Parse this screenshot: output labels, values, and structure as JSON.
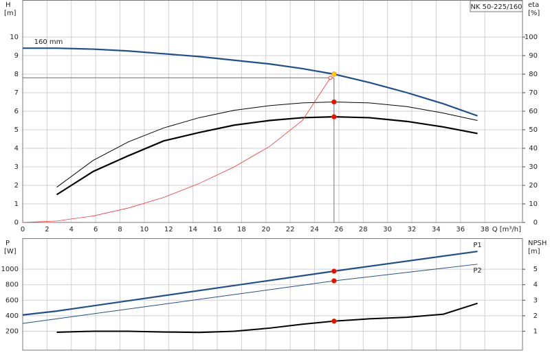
{
  "chart_data": [
    {
      "type": "line",
      "model": "NK 50-225/160",
      "ylabel": "H",
      "yunit": "[m]",
      "y2label": "eta",
      "y2unit": "[%]",
      "xlabel": "Q [m³/h]",
      "xlim": [
        0,
        41.1
      ],
      "xticks": [
        0,
        2,
        4,
        6,
        8,
        10,
        12,
        14,
        16,
        18,
        20,
        22,
        24,
        26,
        28,
        30,
        32,
        34,
        36,
        38
      ],
      "ylim": [
        0,
        12
      ],
      "yticks": [
        0,
        1,
        2,
        3,
        4,
        5,
        6,
        7,
        8,
        9,
        10
      ],
      "y2lim": [
        0,
        120
      ],
      "y2ticks": [
        0,
        10,
        20,
        30,
        40,
        50,
        60,
        70,
        80,
        90,
        100
      ],
      "grid": true,
      "show_xtick_labels": true,
      "duty_point": {
        "x": 25.6,
        "y": 7.8,
        "color": "#888888"
      },
      "series": [
        {
          "name": "160 mm",
          "color": "#1f4e8c",
          "width": 2.2,
          "axis": "y",
          "marker_color": "#ffcc00",
          "x": [
            0,
            2.8,
            5.8,
            8.7,
            11.6,
            14.5,
            17.4,
            20.3,
            23,
            25.6,
            28.5,
            31.6,
            34.6,
            37.4
          ],
          "values": [
            9.4,
            9.4,
            9.35,
            9.25,
            9.1,
            8.95,
            8.75,
            8.55,
            8.3,
            8.0,
            7.55,
            7.0,
            6.4,
            5.75
          ]
        },
        {
          "color": "#000000",
          "width": 1,
          "axis": "y2",
          "marker_color": "#ff0000",
          "x": [
            2.8,
            5.8,
            8.7,
            11.6,
            14.5,
            17.4,
            20.3,
            23,
            25.6,
            28.5,
            31.6,
            34.6,
            37.4
          ],
          "values": [
            19,
            33.5,
            43.5,
            51,
            56.5,
            60.5,
            63,
            64.5,
            65,
            64.5,
            62.5,
            59,
            55
          ]
        },
        {
          "color": "#000000",
          "width": 2.2,
          "axis": "y2",
          "marker_color": "#ff0000",
          "x": [
            2.8,
            5.8,
            8.7,
            11.6,
            14.5,
            17.4,
            20.3,
            23,
            25.6,
            28.5,
            31.6,
            34.6,
            37.4
          ],
          "values": [
            15,
            27.5,
            36,
            44,
            48.5,
            52.5,
            55,
            56.5,
            57,
            56.5,
            54.5,
            51.5,
            48
          ]
        },
        {
          "color": "#ff3333",
          "width": 0.8,
          "axis": "y",
          "x": [
            0,
            2.8,
            5.8,
            8.7,
            11.6,
            14.5,
            17.4,
            20.3,
            23,
            25.3
          ],
          "values": [
            0,
            0.08,
            0.35,
            0.78,
            1.35,
            2.1,
            3.0,
            4.1,
            5.5,
            7.8
          ]
        }
      ]
    },
    {
      "type": "line",
      "ylabel": "P",
      "yunit": "[W]",
      "y2label": "NPSH",
      "y2unit": "[m]",
      "xlim": [
        0,
        41.1
      ],
      "xticks": [
        0,
        2,
        4,
        6,
        8,
        10,
        12,
        14,
        16,
        18,
        20,
        22,
        24,
        26,
        28,
        30,
        32,
        34,
        36,
        38
      ],
      "ylim": [
        -44,
        1400
      ],
      "yticks": [
        200,
        400,
        600,
        800,
        {
          "value": 1000,
          "label": "1000"
        }
      ],
      "y2lim": [
        -0.22,
        7.0
      ],
      "y2ticks": [
        1,
        2,
        3,
        4,
        5
      ],
      "grid": true,
      "show_xtick_labels": false,
      "duty_point": {
        "x": 25.6
      },
      "series": [
        {
          "name": "P1",
          "color": "#1f4e8c",
          "width": 2.2,
          "axis": "y",
          "marker_color": "#ff0000",
          "x": [
            0,
            2.8,
            25.6,
            37.4
          ],
          "values": [
            410,
            460,
            975,
            1230
          ]
        },
        {
          "name": "P2",
          "color": "#1f4e8c",
          "width": 1,
          "axis": "y",
          "marker_color": "#ff0000",
          "x": [
            0,
            25.6,
            37.4
          ],
          "values": [
            300,
            850,
            1065
          ]
        },
        {
          "color": "#000000",
          "width": 2,
          "axis": "y2",
          "marker_color": "#ff0000",
          "x": [
            2.8,
            5.8,
            8.7,
            11.6,
            14.5,
            17.4,
            20.3,
            23,
            25.6,
            28.5,
            31.6,
            34.6,
            37.4
          ],
          "values": [
            0.93,
            1.0,
            1.0,
            0.95,
            0.92,
            1.0,
            1.2,
            1.45,
            1.65,
            1.8,
            1.9,
            2.1,
            2.8
          ]
        }
      ]
    }
  ]
}
